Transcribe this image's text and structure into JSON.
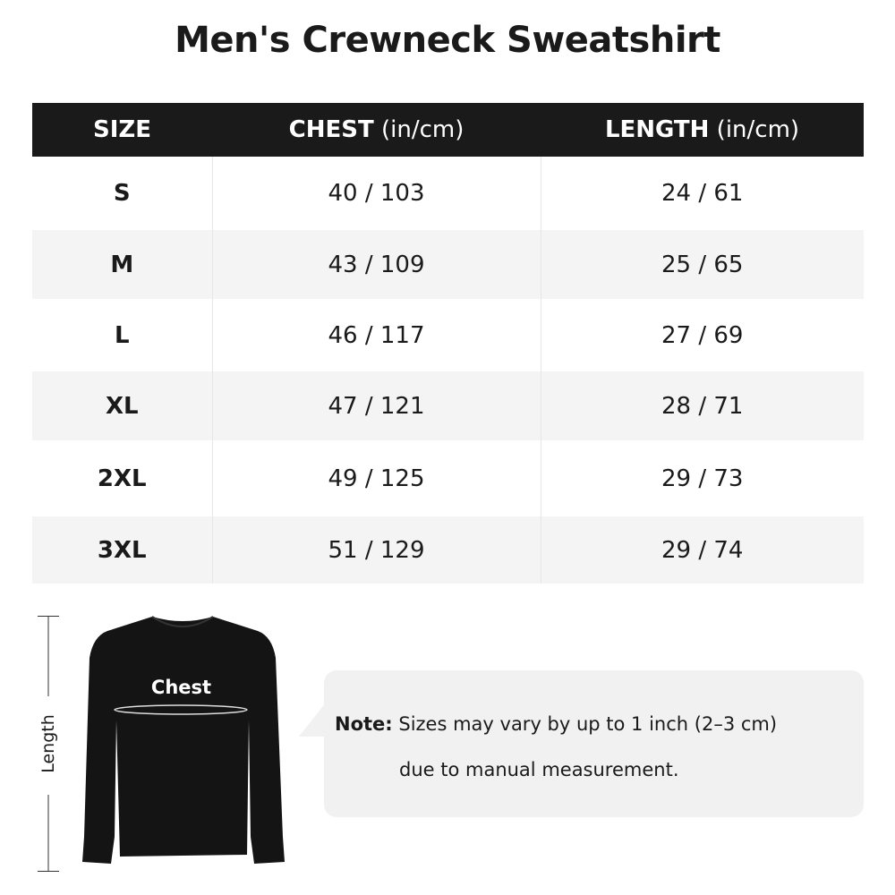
{
  "title": "Men's Crewneck Sweatshirt",
  "table": {
    "headers": [
      {
        "bold": "SIZE",
        "unit": ""
      },
      {
        "bold": "CHEST",
        "unit": " (in/cm)"
      },
      {
        "bold": "LENGTH",
        "unit": " (in/cm)"
      }
    ],
    "rows": [
      [
        "S",
        "40 / 103",
        "24 / 61"
      ],
      [
        "M",
        "43 / 109",
        "25 / 65"
      ],
      [
        "L",
        "46 / 117",
        "27 / 69"
      ],
      [
        "XL",
        "47 / 121",
        "28 / 71"
      ],
      [
        "2XL",
        "49 / 125",
        "29 / 73"
      ],
      [
        "3XL",
        "51 / 129",
        "29 / 74"
      ]
    ]
  },
  "diagram": {
    "length_label": "Length",
    "chest_label": "Chest"
  },
  "note": {
    "prefix": "Note:",
    "line1": " Sizes may vary by up to 1 inch (2–3 cm)",
    "line2": "due to manual measurement."
  },
  "colors": {
    "header_bg": "#1a1a1a",
    "row_alt": "#f4f4f4",
    "note_bg": "#f1f1f1"
  }
}
